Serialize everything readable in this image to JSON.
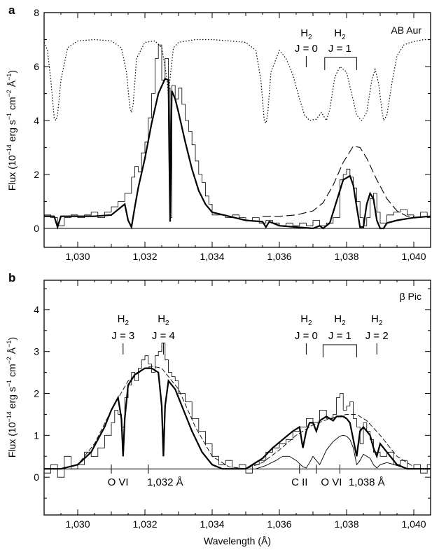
{
  "figure": {
    "xlabel": "Wavelength (Å)"
  },
  "chart_data": [
    {
      "type": "line",
      "panel": "a",
      "star_label": "AB Aur",
      "ylabel": "Flux (10",
      "ylabel_exp1": "−14",
      "ylabel_mid": " erg s",
      "ylabel_exp2": "−1",
      "ylabel_mid2": " cm",
      "ylabel_exp3": "−2",
      "ylabel_mid3": " Å",
      "ylabel_exp4": "−1",
      "ylabel_end": ")",
      "xlim": [
        1029,
        1040.5
      ],
      "ylim": [
        -0.7,
        8
      ],
      "xticks": [
        1030,
        1032,
        1034,
        1036,
        1038,
        1040
      ],
      "xtick_labels": [
        "1,030",
        "1,032",
        "1,034",
        "1,036",
        "1,038",
        "1,040"
      ],
      "yticks": [
        0,
        2,
        4,
        6,
        8
      ],
      "ytick_labels": [
        "0",
        "2",
        "4",
        "6",
        "8"
      ],
      "baseline": 0,
      "annotations": [
        {
          "main": "H",
          "sub": "2",
          "j": "J = 0",
          "x": 1036.8
        },
        {
          "main": "H",
          "sub": "2",
          "j": "J = 1",
          "x": 1037.8
        }
      ],
      "bracket": {
        "x0": 1037.35,
        "x1": 1038.3
      },
      "observed_flux": {
        "x": [
          1029.0,
          1029.2,
          1029.4,
          1029.6,
          1029.8,
          1030.0,
          1030.2,
          1030.4,
          1030.6,
          1030.8,
          1031.0,
          1031.2,
          1031.4,
          1031.6,
          1031.7,
          1031.8,
          1031.9,
          1032.0,
          1032.1,
          1032.2,
          1032.3,
          1032.4,
          1032.5,
          1032.6,
          1032.7,
          1032.75,
          1032.8,
          1032.9,
          1033.0,
          1033.1,
          1033.2,
          1033.3,
          1033.4,
          1033.5,
          1033.6,
          1033.7,
          1033.8,
          1033.9,
          1034.0,
          1034.2,
          1034.4,
          1034.6,
          1034.8,
          1035.0,
          1035.2,
          1035.4,
          1035.6,
          1035.8,
          1036.0,
          1036.2,
          1036.4,
          1036.6,
          1036.8,
          1037.0,
          1037.2,
          1037.4,
          1037.6,
          1037.8,
          1037.9,
          1038.0,
          1038.1,
          1038.2,
          1038.3,
          1038.4,
          1038.5,
          1038.6,
          1038.7,
          1038.8,
          1038.9,
          1039.0,
          1039.2,
          1039.4,
          1039.6,
          1039.8,
          1040.0,
          1040.2,
          1040.4,
          1040.5
        ],
        "y": [
          0.5,
          0.4,
          0.1,
          0.4,
          0.5,
          0.4,
          0.5,
          0.6,
          0.4,
          0.6,
          0.8,
          1.0,
          1.3,
          1.9,
          2.3,
          2.1,
          2.8,
          3.2,
          4.1,
          5.0,
          6.3,
          6.8,
          5.5,
          6.3,
          5.2,
          0.4,
          5.3,
          4.8,
          5.2,
          4.6,
          4.0,
          3.6,
          3.1,
          2.5,
          2.0,
          1.7,
          1.2,
          0.9,
          0.5,
          0.5,
          0.4,
          0.5,
          0.4,
          0.3,
          0.4,
          0.2,
          0.3,
          0.2,
          0.1,
          0.2,
          0.1,
          0.2,
          0.1,
          0.3,
          0.1,
          0.2,
          0.4,
          1.8,
          2.0,
          2.2,
          1.9,
          1.5,
          1.0,
          0.4,
          0.1,
          0.4,
          1.1,
          1.3,
          0.6,
          0.2,
          0.5,
          0.6,
          0.7,
          0.5,
          0.4,
          0.6,
          0.4,
          0.4
        ]
      },
      "model_fit": {
        "x": [
          1029.0,
          1029.3,
          1029.4,
          1029.5,
          1030.0,
          1030.5,
          1031.0,
          1031.4,
          1031.5,
          1031.6,
          1031.7,
          1031.8,
          1032.0,
          1032.2,
          1032.4,
          1032.6,
          1032.7,
          1032.72,
          1032.75,
          1032.78,
          1032.8,
          1032.9,
          1033.0,
          1033.2,
          1033.4,
          1033.6,
          1033.8,
          1034.0,
          1034.5,
          1035.0,
          1035.5,
          1035.6,
          1035.7,
          1036.0,
          1036.5,
          1037.0,
          1037.2,
          1037.3,
          1037.5,
          1037.7,
          1037.9,
          1038.1,
          1038.2,
          1038.3,
          1038.4,
          1038.5,
          1038.6,
          1038.7,
          1038.8,
          1038.9,
          1039.0,
          1039.1,
          1039.2,
          1039.5,
          1040.0,
          1040.5
        ],
        "y": [
          0.45,
          0.45,
          0.05,
          0.45,
          0.45,
          0.45,
          0.5,
          0.9,
          0.3,
          0.05,
          0.8,
          1.5,
          2.6,
          3.9,
          5.0,
          5.55,
          5.5,
          3.0,
          0.25,
          3.5,
          5.1,
          4.8,
          4.3,
          3.2,
          2.2,
          1.4,
          0.9,
          0.6,
          0.45,
          0.3,
          0.25,
          0.05,
          0.25,
          0.1,
          0.05,
          0.0,
          0.1,
          0.0,
          0.2,
          1.0,
          1.8,
          1.95,
          1.6,
          0.8,
          0.05,
          0.05,
          0.9,
          1.3,
          1.1,
          0.3,
          0.0,
          0.0,
          0.2,
          0.3,
          0.4,
          0.45
        ]
      },
      "intrinsic_profile": {
        "x": [
          1035.5,
          1036.0,
          1036.5,
          1037.0,
          1037.3,
          1037.6,
          1037.9,
          1038.2,
          1038.4,
          1038.6,
          1038.9,
          1039.2,
          1039.5,
          1039.8,
          1040.0
        ],
        "y": [
          0.45,
          0.45,
          0.5,
          0.65,
          0.95,
          1.6,
          2.45,
          3.05,
          3.0,
          2.6,
          1.8,
          1.1,
          0.65,
          0.45,
          0.45
        ]
      },
      "h2_transmission": {
        "x": [
          1029.0,
          1029.1,
          1029.2,
          1029.3,
          1029.35,
          1029.4,
          1029.5,
          1029.7,
          1030.0,
          1030.5,
          1031.0,
          1031.3,
          1031.45,
          1031.55,
          1031.6,
          1031.65,
          1031.75,
          1032.0,
          1032.3,
          1032.5,
          1032.65,
          1032.7,
          1032.75,
          1032.85,
          1033.0,
          1033.5,
          1034.0,
          1034.5,
          1035.0,
          1035.3,
          1035.45,
          1035.55,
          1035.6,
          1035.65,
          1035.75,
          1036.0,
          1036.2,
          1036.4,
          1036.6,
          1036.75,
          1036.9,
          1037.1,
          1037.25,
          1037.4,
          1037.5,
          1037.65,
          1037.8,
          1038.0,
          1038.15,
          1038.3,
          1038.45,
          1038.6,
          1038.75,
          1038.85,
          1038.95,
          1039.05,
          1039.1,
          1039.2,
          1039.35,
          1039.5,
          1039.7,
          1039.9,
          1040.1,
          1040.3,
          1040.5
        ],
        "y": [
          6.9,
          6.6,
          5.5,
          4.1,
          4.0,
          4.2,
          5.5,
          6.7,
          6.95,
          7.0,
          6.95,
          6.7,
          5.8,
          4.5,
          4.3,
          4.6,
          6.3,
          6.9,
          6.95,
          6.7,
          5.6,
          4.9,
          5.6,
          6.7,
          6.9,
          7.0,
          7.0,
          6.95,
          6.9,
          6.6,
          5.5,
          4.0,
          3.9,
          4.2,
          5.8,
          6.6,
          6.3,
          5.7,
          4.8,
          4.2,
          4.0,
          4.05,
          4.3,
          4.0,
          4.4,
          5.6,
          6.0,
          5.8,
          5.0,
          4.2,
          4.0,
          4.3,
          5.5,
          5.9,
          5.4,
          4.4,
          4.0,
          4.2,
          5.4,
          6.4,
          6.8,
          6.9,
          6.95,
          7.0,
          7.0
        ]
      }
    },
    {
      "type": "line",
      "panel": "b",
      "star_label": "β Pic",
      "ylabel": "Flux (10",
      "ylabel_exp1": "−14",
      "ylabel_mid": " erg s",
      "ylabel_exp2": "−1",
      "ylabel_mid2": " cm",
      "ylabel_exp3": "−2",
      "ylabel_mid3": " Å",
      "ylabel_exp4": "−1",
      "ylabel_end": ")",
      "xlim": [
        1029,
        1040.5
      ],
      "ylim": [
        -0.9,
        4.7
      ],
      "xticks": [
        1030,
        1032,
        1034,
        1036,
        1038,
        1040
      ],
      "xtick_labels": [
        "1,030",
        "1,032",
        "1,034",
        "1,036",
        "1,038",
        "1,040"
      ],
      "yticks": [
        0,
        1,
        2,
        3,
        4
      ],
      "ytick_labels": [
        "0",
        "1",
        "2",
        "3",
        "4"
      ],
      "baseline": 0.2,
      "annotations": [
        {
          "main": "H",
          "sub": "2",
          "j": "J = 3",
          "x": 1031.35
        },
        {
          "main": "H",
          "sub": "2",
          "j": "J = 4",
          "x": 1032.55
        },
        {
          "main": "H",
          "sub": "2",
          "j": "J = 0",
          "x": 1036.8
        },
        {
          "main": "H",
          "sub": "2",
          "j": "J = 1",
          "x": 1037.8
        },
        {
          "main": "H",
          "sub": "2",
          "j": "J = 2",
          "x": 1038.9
        }
      ],
      "bracket": {
        "x0": 1037.3,
        "x1": 1038.3
      },
      "line_ids": [
        {
          "label": "O VI",
          "x": 1031.2
        },
        {
          "label": "1,032 Å",
          "x": 1032.6
        },
        {
          "label": "C II",
          "x": 1036.6
        },
        {
          "label": "O VI",
          "x": 1037.55
        },
        {
          "label": "1,038 Å",
          "x": 1038.6
        }
      ],
      "line_id_ticks": [
        1032.1,
        1036.6,
        1037.1,
        1037.8
      ],
      "observed_flux": {
        "x": [
          1029.0,
          1029.2,
          1029.4,
          1029.6,
          1029.8,
          1030.0,
          1030.2,
          1030.4,
          1030.6,
          1030.8,
          1031.0,
          1031.1,
          1031.2,
          1031.3,
          1031.4,
          1031.5,
          1031.6,
          1031.7,
          1031.8,
          1031.9,
          1032.0,
          1032.1,
          1032.2,
          1032.3,
          1032.4,
          1032.5,
          1032.6,
          1032.7,
          1032.8,
          1032.9,
          1033.0,
          1033.2,
          1033.4,
          1033.6,
          1033.8,
          1034.0,
          1034.2,
          1034.4,
          1034.6,
          1034.8,
          1035.0,
          1035.2,
          1035.4,
          1035.6,
          1035.8,
          1036.0,
          1036.2,
          1036.4,
          1036.6,
          1036.8,
          1037.0,
          1037.2,
          1037.4,
          1037.6,
          1037.7,
          1037.8,
          1037.9,
          1038.0,
          1038.1,
          1038.2,
          1038.3,
          1038.4,
          1038.5,
          1038.6,
          1038.7,
          1038.8,
          1039.0,
          1039.2,
          1039.4,
          1039.6,
          1039.8,
          1040.0,
          1040.2,
          1040.4,
          1040.5
        ],
        "y": [
          0.1,
          0.3,
          0.0,
          0.5,
          0.2,
          0.3,
          0.6,
          0.5,
          0.7,
          1.0,
          1.3,
          1.6,
          1.5,
          1.2,
          1.9,
          2.2,
          2.5,
          2.3,
          2.6,
          2.8,
          2.9,
          2.7,
          2.5,
          2.9,
          3.0,
          3.2,
          2.8,
          2.5,
          2.4,
          2.3,
          2.0,
          1.8,
          1.4,
          1.1,
          0.8,
          0.5,
          0.3,
          0.4,
          0.2,
          0.3,
          0.1,
          0.3,
          0.4,
          0.6,
          0.7,
          0.8,
          0.9,
          1.1,
          1.2,
          1.4,
          1.3,
          1.6,
          1.4,
          1.5,
          1.9,
          2.0,
          1.6,
          1.7,
          1.8,
          1.4,
          1.2,
          0.8,
          1.3,
          1.1,
          0.9,
          0.6,
          0.5,
          0.6,
          0.3,
          0.4,
          0.2,
          0.3,
          0.1,
          0.3,
          0.3
        ]
      },
      "model_fit": {
        "x": [
          1029.0,
          1029.5,
          1030.0,
          1030.4,
          1030.8,
          1031.0,
          1031.2,
          1031.3,
          1031.35,
          1031.4,
          1031.5,
          1031.7,
          1032.0,
          1032.2,
          1032.4,
          1032.5,
          1032.55,
          1032.6,
          1032.7,
          1032.9,
          1033.1,
          1033.4,
          1033.7,
          1034.0,
          1034.3,
          1034.6,
          1035.0,
          1035.2,
          1035.5,
          1035.8,
          1036.1,
          1036.4,
          1036.6,
          1036.7,
          1036.8,
          1036.9,
          1037.0,
          1037.1,
          1037.2,
          1037.3,
          1037.4,
          1037.5,
          1037.6,
          1037.7,
          1037.8,
          1037.9,
          1038.0,
          1038.1,
          1038.2,
          1038.3,
          1038.4,
          1038.5,
          1038.6,
          1038.7,
          1038.8,
          1038.9,
          1039.0,
          1039.2,
          1039.5,
          1039.8,
          1040.0,
          1040.5
        ],
        "y": [
          0.2,
          0.2,
          0.3,
          0.6,
          1.2,
          1.6,
          1.9,
          1.4,
          0.5,
          1.4,
          2.2,
          2.45,
          2.6,
          2.6,
          2.5,
          1.7,
          0.5,
          1.7,
          2.3,
          2.1,
          1.7,
          1.1,
          0.6,
          0.3,
          0.2,
          0.2,
          0.2,
          0.3,
          0.45,
          0.7,
          0.9,
          1.1,
          1.2,
          0.7,
          1.1,
          1.3,
          1.3,
          1.1,
          1.35,
          1.4,
          1.45,
          1.4,
          1.35,
          1.45,
          1.45,
          1.45,
          1.4,
          1.3,
          0.9,
          0.5,
          1.1,
          1.2,
          1.1,
          1.0,
          0.7,
          0.5,
          0.8,
          0.6,
          0.3,
          0.2,
          0.2,
          0.2
        ]
      },
      "intrinsic_profile": {
        "x": [
          1029.5,
          1030.0,
          1030.5,
          1031.0,
          1031.5,
          1032.0,
          1032.2,
          1032.5,
          1033.0,
          1033.5,
          1034.0,
          1034.5,
          1035.0,
          1035.5,
          1036.0,
          1036.5,
          1037.0,
          1037.5,
          1038.0,
          1038.3,
          1038.6,
          1039.0,
          1039.5,
          1040.0
        ],
        "y": [
          0.2,
          0.3,
          0.8,
          1.6,
          2.3,
          2.6,
          2.65,
          2.6,
          2.1,
          1.2,
          0.5,
          0.25,
          0.2,
          0.35,
          0.65,
          1.0,
          1.25,
          1.4,
          1.5,
          1.5,
          1.35,
          1.0,
          0.5,
          0.25
        ]
      },
      "thin_component": {
        "x": [
          1035.3,
          1035.6,
          1035.9,
          1036.1,
          1036.3,
          1036.5,
          1036.7,
          1036.8,
          1036.9,
          1037.0,
          1037.1,
          1037.2,
          1037.4,
          1037.6,
          1037.8,
          1037.9,
          1038.0,
          1038.1,
          1038.2,
          1038.3,
          1038.4,
          1038.5,
          1038.7,
          1038.8,
          1038.9,
          1039.0,
          1039.2,
          1039.5,
          1039.8
        ],
        "y": [
          0.2,
          0.28,
          0.4,
          0.5,
          0.5,
          0.4,
          0.25,
          0.22,
          0.35,
          0.5,
          0.4,
          0.3,
          0.65,
          0.85,
          0.98,
          1.0,
          0.98,
          0.9,
          0.7,
          0.3,
          0.4,
          0.55,
          0.45,
          0.3,
          0.22,
          0.3,
          0.35,
          0.28,
          0.2
        ]
      }
    }
  ]
}
